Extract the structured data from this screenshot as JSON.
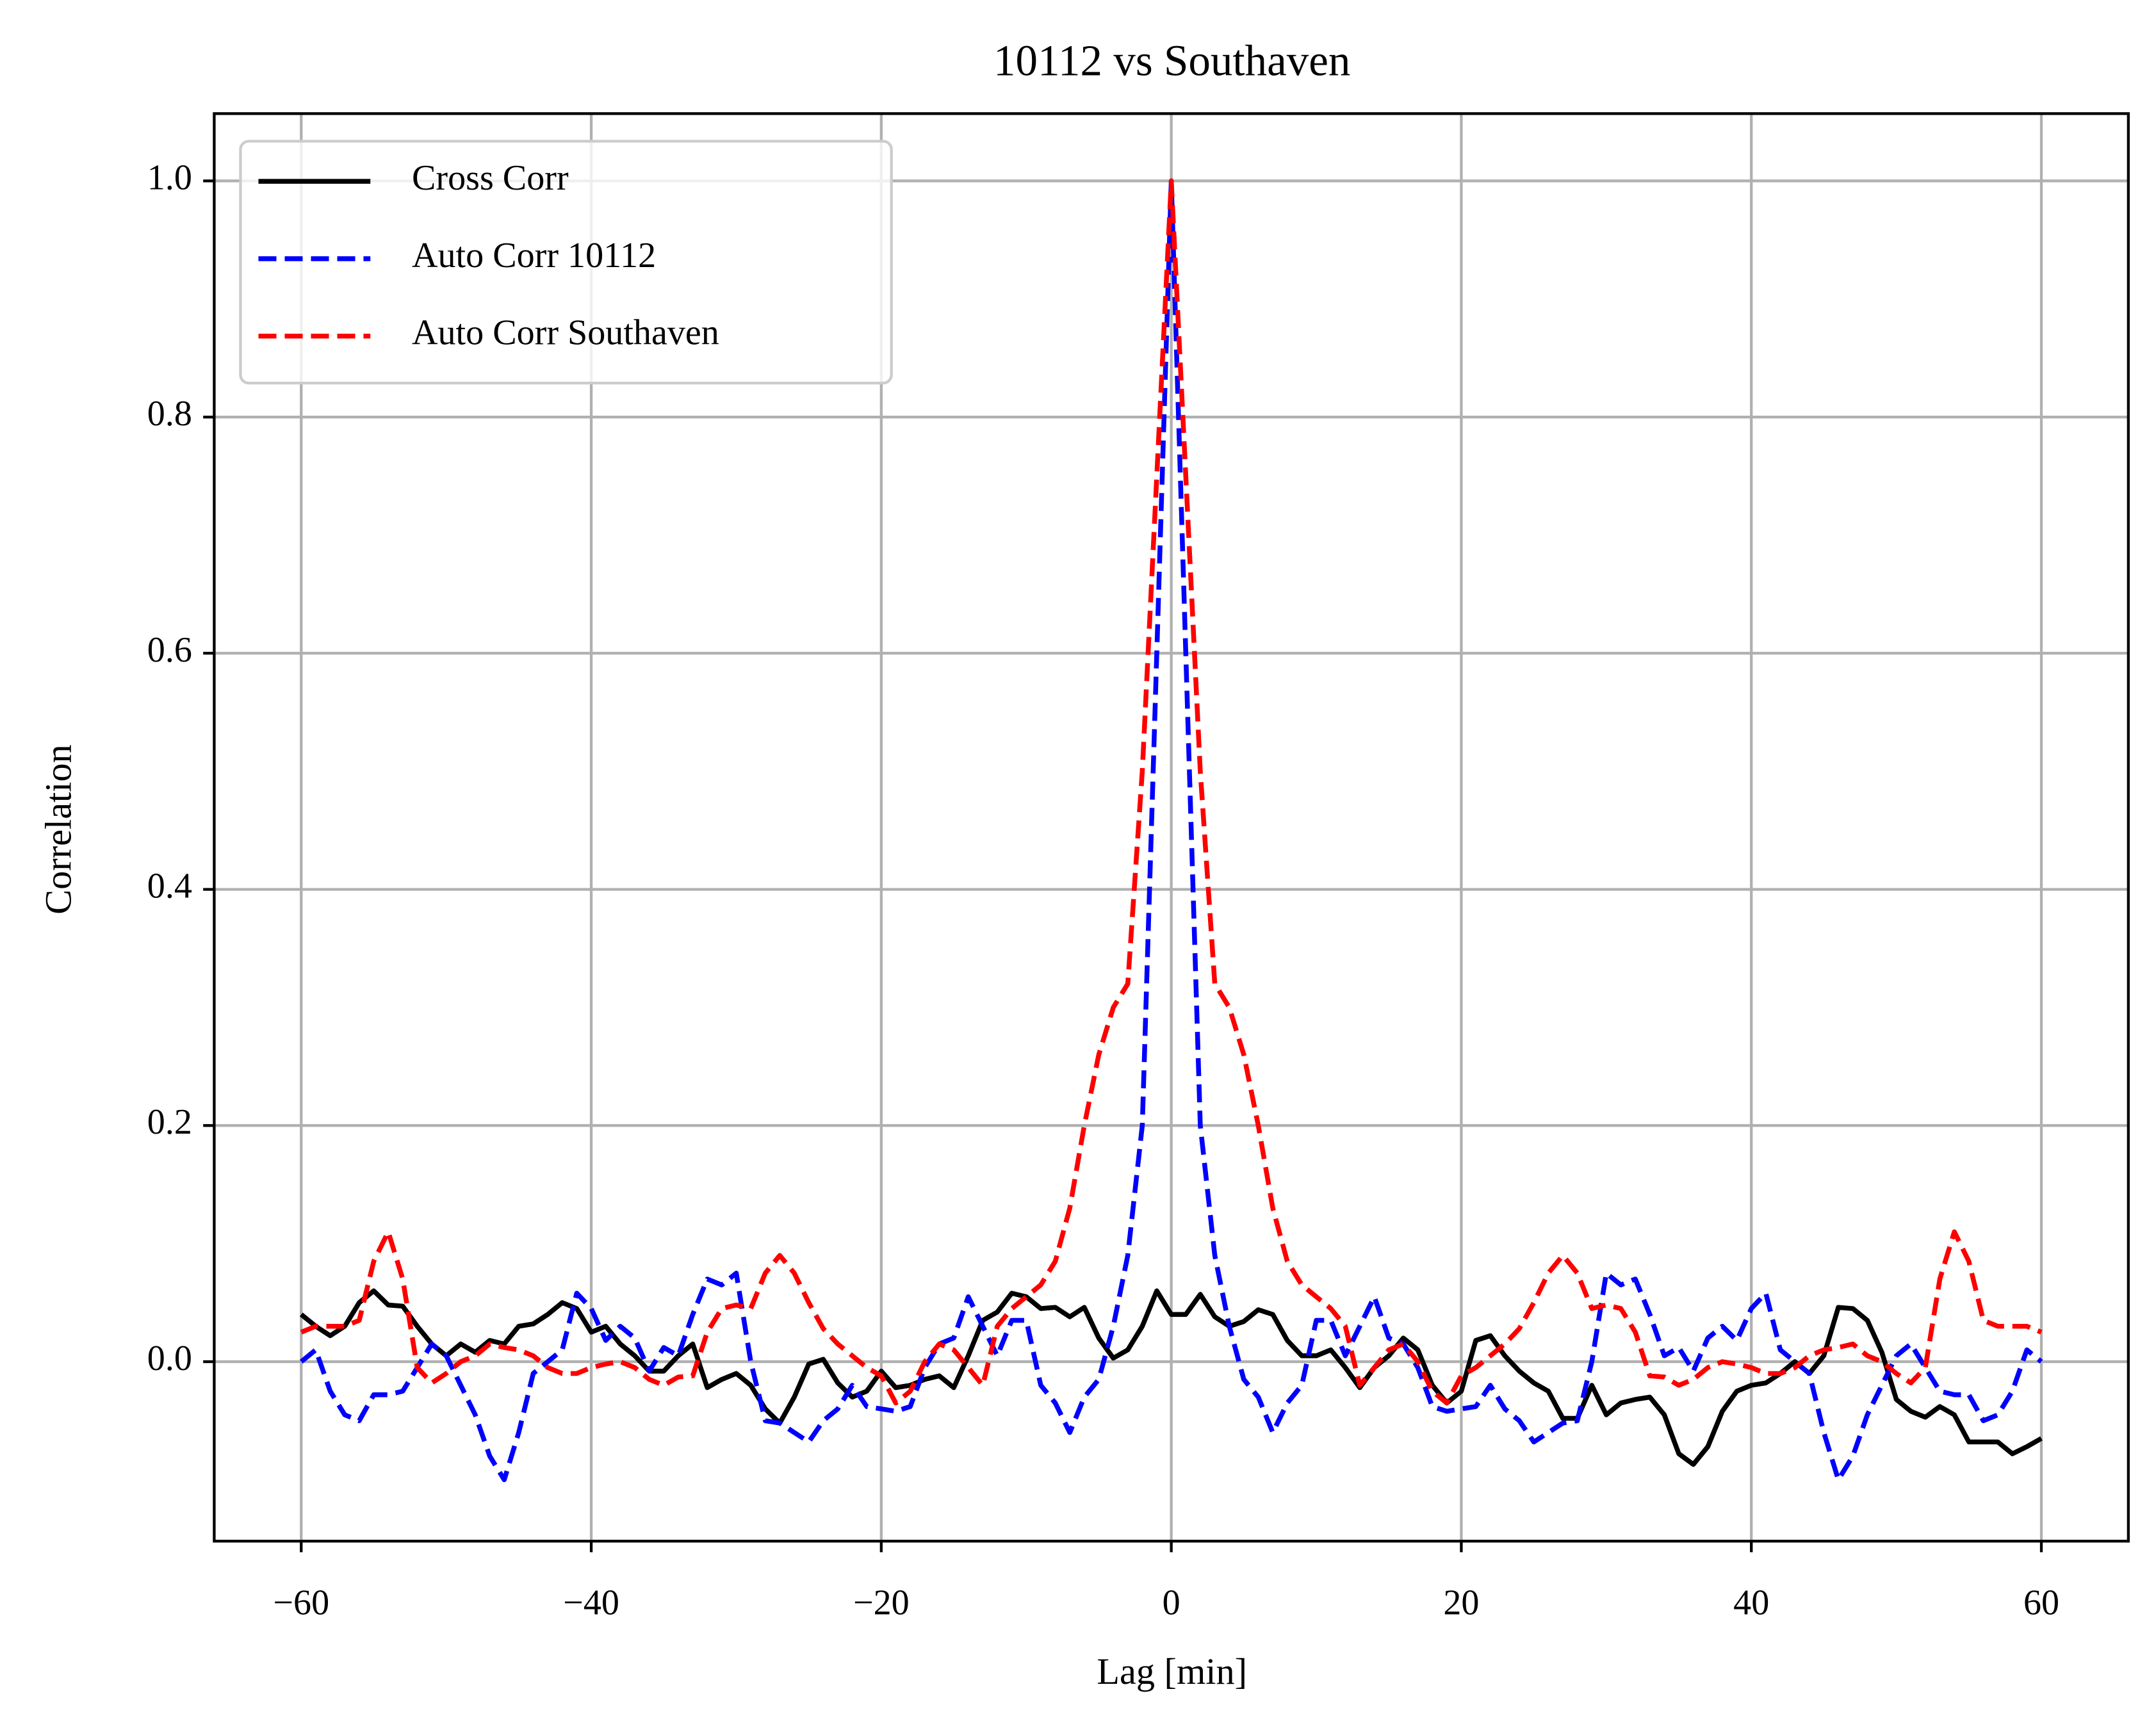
{
  "chart_data": {
    "type": "line",
    "title": "10112 vs Southaven",
    "xlabel": "Lag [min]",
    "ylabel": "Correlation",
    "x": [
      -60,
      -59,
      -58,
      -57,
      -56,
      -55,
      -54,
      -53,
      -52,
      -51,
      -50,
      -49,
      -48,
      -47,
      -46,
      -45,
      -44,
      -43,
      -42,
      -41,
      -40,
      -39,
      -38,
      -37,
      -36,
      -35,
      -34,
      -33,
      -32,
      -31,
      -30,
      -29,
      -28,
      -27,
      -26,
      -25,
      -24,
      -23,
      -22,
      -21,
      -20,
      -19,
      -18,
      -17,
      -16,
      -15,
      -14,
      -13,
      -12,
      -11,
      -10,
      -9,
      -8,
      -7,
      -6,
      -5,
      -4,
      -3,
      -2,
      -1,
      0,
      1,
      2,
      3,
      4,
      5,
      6,
      7,
      8,
      9,
      10,
      11,
      12,
      13,
      14,
      15,
      16,
      17,
      18,
      19,
      20,
      21,
      22,
      23,
      24,
      25,
      26,
      27,
      28,
      29,
      30,
      31,
      32,
      33,
      34,
      35,
      36,
      37,
      38,
      39,
      40,
      41,
      42,
      43,
      44,
      45,
      46,
      47,
      48,
      49,
      50,
      51,
      52,
      53,
      54,
      55,
      56,
      57,
      58,
      59,
      60
    ],
    "series": [
      {
        "name": "Cross Corr",
        "color": "#000000",
        "linestyle": "solid",
        "values": [
          0.04,
          0.03,
          0.022,
          0.03,
          0.05,
          0.06,
          0.048,
          0.047,
          0.03,
          0.015,
          0.005,
          0.015,
          0.008,
          0.018,
          0.015,
          0.03,
          0.032,
          0.04,
          0.05,
          0.045,
          0.025,
          0.03,
          0.015,
          0.005,
          -0.008,
          -0.008,
          0.005,
          0.015,
          -0.022,
          -0.015,
          -0.01,
          -0.02,
          -0.04,
          -0.052,
          -0.03,
          -0.002,
          0.002,
          -0.018,
          -0.03,
          -0.025,
          -0.008,
          -0.022,
          -0.02,
          -0.015,
          -0.012,
          -0.022,
          0.005,
          0.035,
          0.042,
          0.058,
          0.055,
          0.045,
          0.046,
          0.038,
          0.046,
          0.02,
          0.003,
          0.01,
          0.03,
          0.06,
          0.04,
          0.04,
          0.057,
          0.038,
          0.03,
          0.034,
          0.044,
          0.04,
          0.018,
          0.005,
          0.005,
          0.01,
          -0.005,
          -0.022,
          -0.005,
          0.005,
          0.02,
          0.01,
          -0.02,
          -0.035,
          -0.025,
          0.018,
          0.022,
          0.005,
          -0.008,
          -0.018,
          -0.025,
          -0.048,
          -0.048,
          -0.02,
          -0.045,
          -0.035,
          -0.032,
          -0.03,
          -0.045,
          -0.078,
          -0.087,
          -0.072,
          -0.042,
          -0.025,
          -0.02,
          -0.018,
          -0.01,
          0.0,
          -0.01,
          0.005,
          0.046,
          0.045,
          0.035,
          0.008,
          -0.032,
          -0.042,
          -0.047,
          -0.038,
          -0.045,
          -0.068,
          -0.068,
          -0.068,
          -0.078,
          -0.072,
          -0.065
        ]
      },
      {
        "name": "Auto Corr 10112",
        "color": "#0000ff",
        "linestyle": "dashed",
        "values": [
          0.0,
          0.01,
          -0.025,
          -0.045,
          -0.05,
          -0.028,
          -0.028,
          -0.025,
          -0.005,
          0.015,
          0.005,
          -0.02,
          -0.045,
          -0.08,
          -0.1,
          -0.06,
          -0.01,
          0.0,
          0.01,
          0.058,
          0.045,
          0.018,
          0.03,
          0.02,
          -0.008,
          0.012,
          0.005,
          0.04,
          0.07,
          0.065,
          0.075,
          0.0,
          -0.05,
          -0.052,
          -0.06,
          -0.068,
          -0.05,
          -0.04,
          -0.02,
          -0.038,
          -0.04,
          -0.042,
          -0.038,
          -0.005,
          0.015,
          0.02,
          0.055,
          0.03,
          0.005,
          0.035,
          0.035,
          -0.02,
          -0.035,
          -0.06,
          -0.03,
          -0.015,
          0.03,
          0.09,
          0.2,
          0.6,
          1.0,
          0.6,
          0.2,
          0.09,
          0.03,
          -0.015,
          -0.03,
          -0.06,
          -0.035,
          -0.02,
          0.035,
          0.035,
          0.005,
          0.03,
          0.055,
          0.02,
          0.015,
          -0.005,
          -0.038,
          -0.042,
          -0.04,
          -0.038,
          -0.02,
          -0.04,
          -0.05,
          -0.068,
          -0.06,
          -0.052,
          -0.05,
          0.0,
          0.075,
          0.065,
          0.07,
          0.04,
          0.005,
          0.012,
          -0.008,
          0.02,
          0.03,
          0.018,
          0.045,
          0.058,
          0.01,
          0.0,
          -0.01,
          -0.06,
          -0.1,
          -0.08,
          -0.045,
          -0.02,
          0.005,
          0.015,
          -0.005,
          -0.025,
          -0.028,
          -0.028,
          -0.05,
          -0.045,
          -0.025,
          0.01,
          0.0
        ]
      },
      {
        "name": "Auto Corr Southaven",
        "color": "#ff0000",
        "linestyle": "dashed",
        "values": [
          0.025,
          0.03,
          0.03,
          0.03,
          0.035,
          0.085,
          0.11,
          0.07,
          -0.005,
          -0.018,
          -0.01,
          0.0,
          0.005,
          0.015,
          0.012,
          0.01,
          0.005,
          -0.005,
          -0.01,
          -0.01,
          -0.005,
          -0.002,
          0.0,
          -0.005,
          -0.015,
          -0.02,
          -0.013,
          -0.012,
          0.025,
          0.045,
          0.048,
          0.045,
          0.075,
          0.09,
          0.075,
          0.05,
          0.028,
          0.015,
          0.005,
          -0.005,
          -0.012,
          -0.035,
          -0.025,
          0.0,
          0.015,
          0.01,
          -0.005,
          -0.02,
          0.03,
          0.045,
          0.055,
          0.065,
          0.085,
          0.13,
          0.2,
          0.26,
          0.3,
          0.32,
          0.5,
          0.75,
          1.0,
          0.75,
          0.5,
          0.32,
          0.3,
          0.26,
          0.2,
          0.13,
          0.085,
          0.065,
          0.055,
          0.045,
          0.03,
          -0.02,
          -0.005,
          0.01,
          0.015,
          0.0,
          -0.025,
          -0.035,
          -0.012,
          -0.005,
          0.005,
          0.015,
          0.028,
          0.05,
          0.075,
          0.09,
          0.075,
          0.045,
          0.048,
          0.045,
          0.025,
          -0.012,
          -0.013,
          -0.02,
          -0.015,
          -0.005,
          0.0,
          -0.002,
          -0.005,
          -0.01,
          -0.01,
          -0.005,
          0.005,
          0.01,
          0.012,
          0.015,
          0.005,
          0.0,
          -0.01,
          -0.018,
          -0.005,
          0.07,
          0.11,
          0.085,
          0.035,
          0.03,
          0.03,
          0.03,
          0.025
        ]
      }
    ],
    "xlim": [
      -66,
      66
    ],
    "ylim": [
      -0.152,
      1.057
    ],
    "xticks": [
      {
        "value": -60,
        "label": "−60"
      },
      {
        "value": -40,
        "label": "−40"
      },
      {
        "value": -20,
        "label": "−20"
      },
      0,
      20,
      40,
      60
    ],
    "yticks": [
      {
        "value": 0.0,
        "label": "0.0"
      },
      0.2,
      0.4,
      0.6,
      0.8,
      {
        "value": 1.0,
        "label": "1.0"
      }
    ],
    "grid": true,
    "legend": "upper left"
  }
}
